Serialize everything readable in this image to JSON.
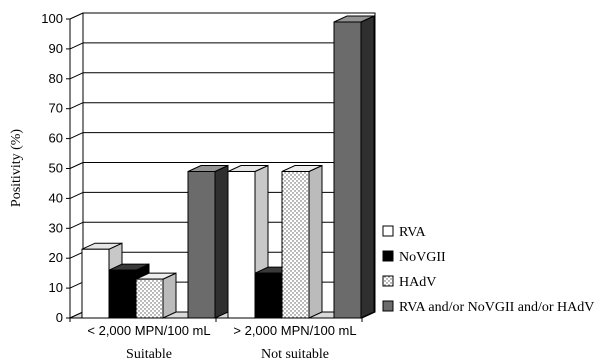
{
  "chart_data": {
    "type": "bar",
    "ylabel": "Positivity (%)",
    "ylim": [
      0,
      100
    ],
    "yticks": [
      "0",
      "10",
      "20",
      "30",
      "40",
      "50",
      "60",
      "70",
      "80",
      "90",
      "100"
    ],
    "categories": [
      "< 2,000 MPN/100 mL",
      "> 2,000 MPN/100 mL"
    ],
    "group_labels": [
      "Suitable",
      "Not suitable"
    ],
    "grid": "horizontal",
    "legend_position": "right",
    "series": [
      {
        "name": "RVA",
        "values": [
          23,
          49
        ],
        "fill": "#ffffff"
      },
      {
        "name": "NoVGII",
        "values": [
          16,
          15
        ],
        "fill": "#000000"
      },
      {
        "name": "HAdV",
        "values": [
          13,
          49
        ],
        "fill": "dots"
      },
      {
        "name": "RVA and/or NoVGII and/or HAdV",
        "values": [
          49,
          99
        ],
        "fill": "#6b6b6b"
      }
    ]
  }
}
